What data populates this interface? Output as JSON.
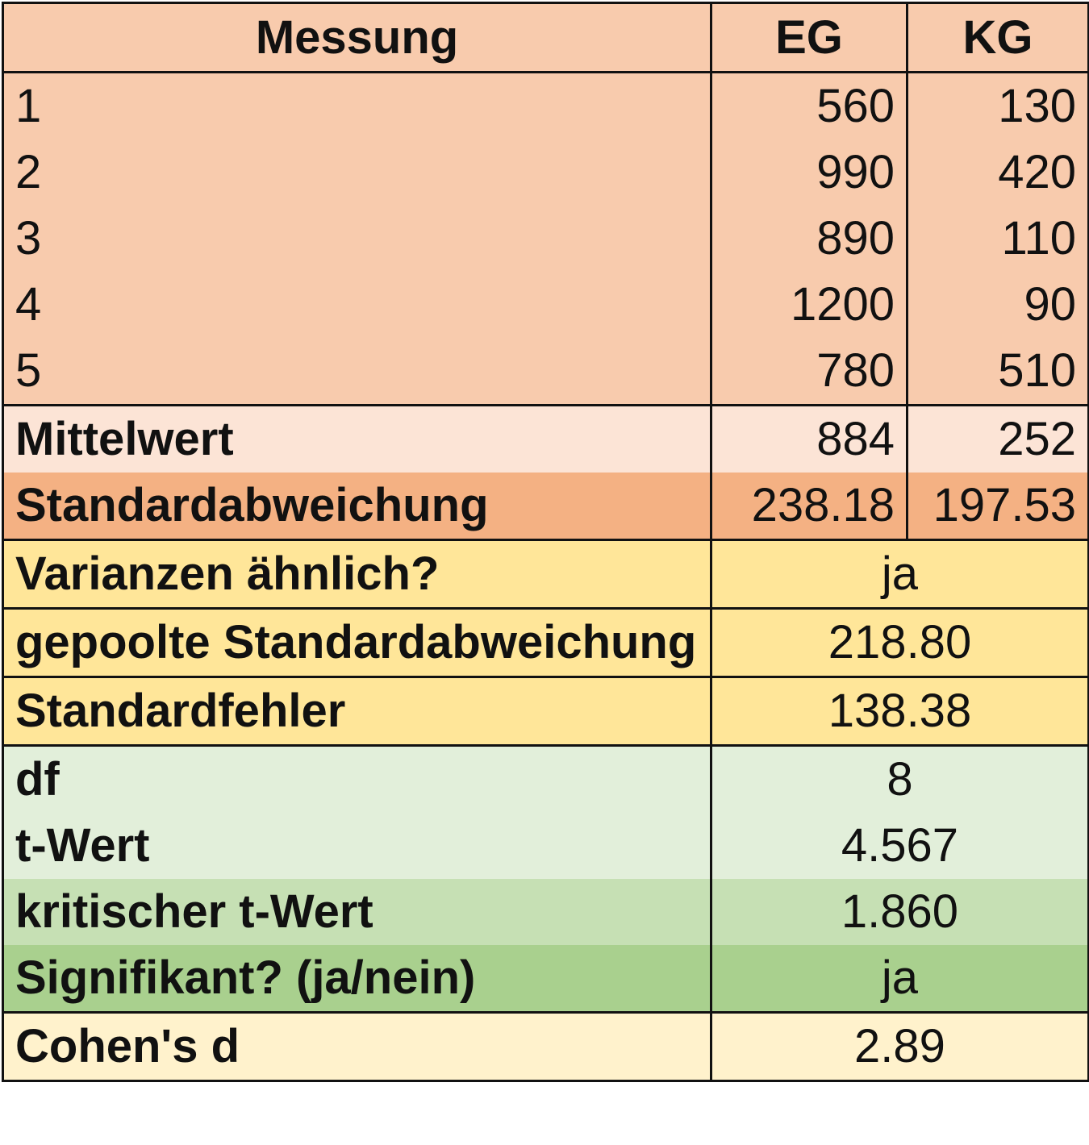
{
  "header": {
    "col_measure": "Messung",
    "col_eg": "EG",
    "col_kg": "KG"
  },
  "measurements": [
    {
      "n": "1",
      "eg": "560",
      "kg": "130"
    },
    {
      "n": "2",
      "eg": "990",
      "kg": "420"
    },
    {
      "n": "3",
      "eg": "890",
      "kg": "110"
    },
    {
      "n": "4",
      "eg": "1200",
      "kg": "90"
    },
    {
      "n": "5",
      "eg": "780",
      "kg": "510"
    }
  ],
  "mean": {
    "label": "Mittelwert",
    "eg": "884",
    "kg": "252"
  },
  "sd": {
    "label": "Standardabweichung",
    "eg": "238.18",
    "kg": "197.53"
  },
  "results": {
    "variances_label": "Varianzen ähnlich?",
    "variances_value": "ja",
    "pooled_sd_label": "gepoolte Standardabweichung",
    "pooled_sd_value": "218.80",
    "se_label": "Standardfehler",
    "se_value": "138.38",
    "df_label": "df",
    "df_value": "8",
    "t_label": "t-Wert",
    "t_value": "4.567",
    "tcrit_label": "kritischer t-Wert",
    "tcrit_value": "1.860",
    "sig_label": "Signifikant? (ja/nein)",
    "sig_value": "ja",
    "cohen_label": "Cohen's d",
    "cohen_value": "2.89"
  },
  "colors": {
    "header_and_data": "#f8cbad",
    "mean_row": "#fce4d6",
    "sd_row": "#f4b183",
    "yellow_rows": "#ffe699",
    "df_t_rows": "#e2efda",
    "critical_t_row": "#c6e0b4",
    "significant_row": "#a9d08e",
    "cohen_row": "#fff2cc"
  }
}
